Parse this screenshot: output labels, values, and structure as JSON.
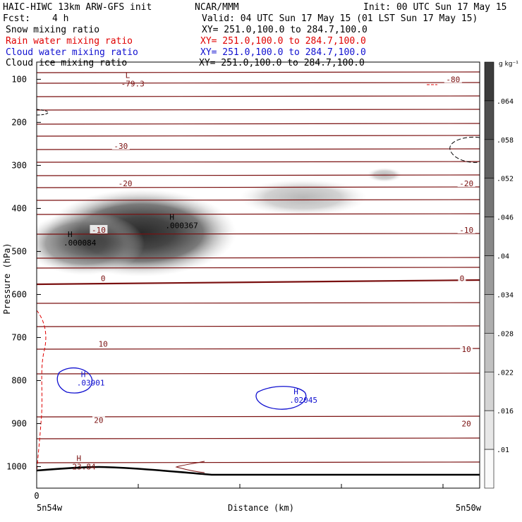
{
  "header": {
    "model": "HAIC-HIWC 13km ARW-GFS init",
    "org": "NCAR/MMM",
    "init": "Init: 00 UTC Sun 17 May 15",
    "fcst_label": "Fcst:",
    "fcst_value": "4 h",
    "valid": "Valid: 04 UTC Sun 17 May 15 (01 LST Sun 17 May 15)"
  },
  "fields": [
    {
      "name": "Snow mixing ratio",
      "xy": "XY= 251.0,100.0 to 284.7,100.0",
      "color": "#000000"
    },
    {
      "name": "Rain water mixing ratio",
      "xy": "XY= 251.0,100.0 to 284.7,100.0",
      "color": "#e00000"
    },
    {
      "name": "Cloud water mixing ratio",
      "xy": "XY= 251.0,100.0 to 284.7,100.0",
      "color": "#1010d0"
    },
    {
      "name": "Cloud ice mixing ratio",
      "xy": "XY= 251.0,100.0 to 284.7,100.0",
      "color": "#000000"
    }
  ],
  "chart_data": {
    "type": "cross-section",
    "xlabel": "Distance (km)",
    "ylabel": "Pressure (hPa)",
    "x_origin_label": "0",
    "x_start_label": "5n54w",
    "x_end_label": "5n50w",
    "y_ticks": [
      100,
      200,
      300,
      400,
      500,
      600,
      700,
      800,
      900,
      1000
    ],
    "ylim": [
      1050,
      60
    ],
    "colorbar": {
      "unit": "g kg⁻¹",
      "ticks": [
        ".01",
        ".016",
        ".022",
        ".028",
        ".034",
        ".04",
        ".046",
        ".052",
        ".058",
        ".064"
      ]
    },
    "temperature_labels": [
      {
        "text": "-80",
        "p": 100,
        "x": 0.94
      },
      {
        "text": "-30",
        "p": 255,
        "x": 0.19
      },
      {
        "text": "-20",
        "p": 342,
        "x": 0.2
      },
      {
        "text": "-20",
        "p": 342,
        "x": 0.97
      },
      {
        "text": "-10",
        "p": 450,
        "x": 0.14
      },
      {
        "text": "-10",
        "p": 450,
        "x": 0.97
      },
      {
        "text": "0",
        "p": 562,
        "x": 0.15
      },
      {
        "text": "0",
        "p": 562,
        "x": 0.96
      },
      {
        "text": "10",
        "p": 715,
        "x": 0.15
      },
      {
        "text": "10",
        "p": 727,
        "x": 0.97
      },
      {
        "text": "20",
        "p": 892,
        "x": 0.14
      },
      {
        "text": "20",
        "p": 900,
        "x": 0.97
      }
    ],
    "extrema": [
      {
        "kind": "L",
        "value": "-79.3",
        "p": 100,
        "x": 0.2,
        "color": "#7a1010"
      },
      {
        "kind": "H",
        "value": ".000084",
        "p": 470,
        "x": 0.07,
        "color": "#000000"
      },
      {
        "kind": "H",
        "value": ".000367",
        "p": 430,
        "x": 0.3,
        "color": "#000000"
      },
      {
        "kind": "H",
        "value": ".03901",
        "p": 795,
        "x": 0.1,
        "color": "#1010d0"
      },
      {
        "kind": "H",
        "value": ".02045",
        "p": 835,
        "x": 0.58,
        "color": "#1010d0"
      },
      {
        "kind": "H",
        "value": "23.84",
        "p": 990,
        "x": 0.09,
        "color": "#7a1010"
      }
    ]
  }
}
